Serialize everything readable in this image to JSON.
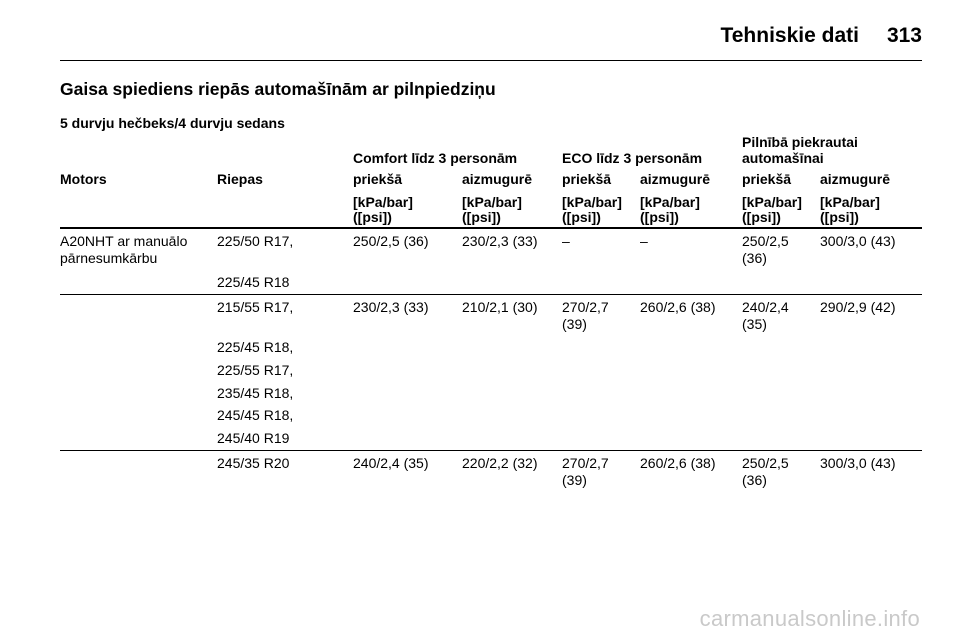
{
  "header": {
    "title": "Tehniskie dati",
    "page_number": "313"
  },
  "section_title": "Gaisa spiediens riepās automašīnām ar pilnpiedziņu",
  "subtitle": "5 durvju hečbeks/4 durvju sedans",
  "table": {
    "group_headers": {
      "comfort": "Comfort līdz 3 personām",
      "eco": "ECO līdz 3 personām",
      "full_line1": "Pilnībā piekrautai",
      "full_line2": "automašīnai"
    },
    "col_headers": {
      "motors": "Motors",
      "riepas": "Riepas",
      "comfort_front": "priekšā",
      "comfort_rear": "aizmugurē",
      "eco_front": "priekšā",
      "eco_rear": "aizmugurē",
      "full_front": "priekšā",
      "full_rear": "aizmugurē"
    },
    "unit_line1": "[kPa/bar]",
    "unit_line2": "([psi])",
    "rows": [
      {
        "motor_line1": "A20NHT ar manuālo",
        "motor_line2": "pārnesumkārbu",
        "tyres": [
          "225/50 R17,",
          "225/45 R18"
        ],
        "comfort_front": "250/2,5 (36)",
        "comfort_rear": "230/2,3 (33)",
        "eco_front": "–",
        "eco_rear": "–",
        "full_front_line1": "250/2,5",
        "full_front_line2": "(36)",
        "full_rear": "300/3,0 (43)"
      },
      {
        "tyres": [
          "215/55 R17,",
          "225/45 R18,",
          "225/55 R17,",
          "235/45 R18,",
          "245/45 R18,",
          "245/40 R19"
        ],
        "comfort_front": "230/2,3 (33)",
        "comfort_rear": "210/2,1 (30)",
        "eco_front_line1": "270/2,7",
        "eco_front_line2": "(39)",
        "eco_rear": "260/2,6 (38)",
        "full_front_line1": "240/2,4",
        "full_front_line2": "(35)",
        "full_rear": "290/2,9 (42)"
      },
      {
        "tyres": [
          "245/35 R20"
        ],
        "comfort_front": "240/2,4 (35)",
        "comfort_rear": "220/2,2 (32)",
        "eco_front_line1": "270/2,7",
        "eco_front_line2": "(39)",
        "eco_rear": "260/2,6 (38)",
        "full_front_line1": "250/2,5",
        "full_front_line2": "(36)",
        "full_rear": "300/3,0 (43)"
      }
    ]
  },
  "watermark": "carmanualsonline.info"
}
